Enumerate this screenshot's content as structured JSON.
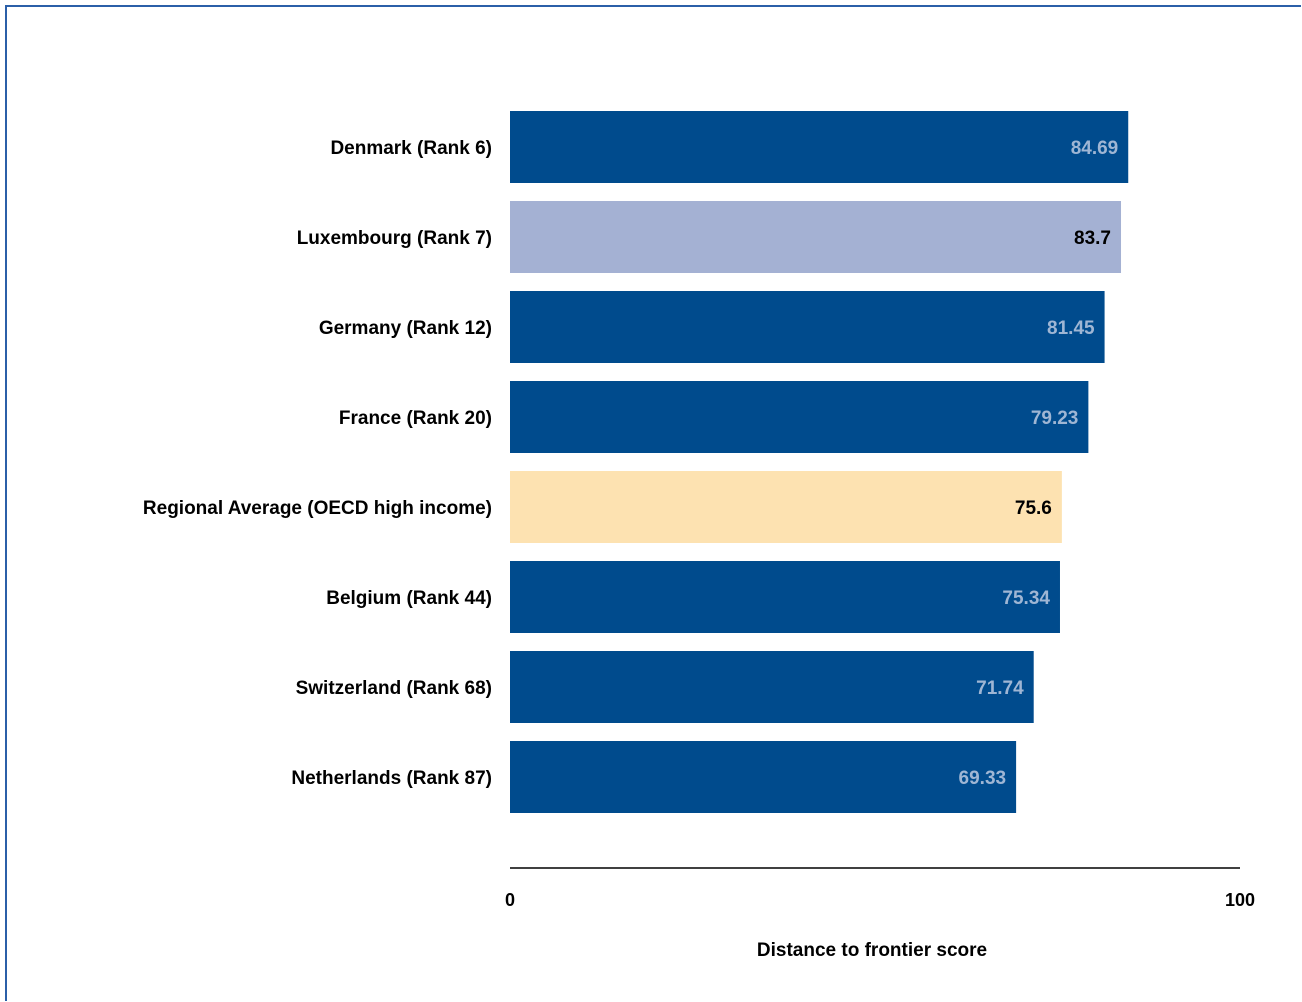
{
  "chart_data": {
    "type": "bar",
    "orientation": "horizontal",
    "title": "",
    "xlabel": "Distance to frontier score",
    "ylabel": "",
    "xlim": [
      0,
      100
    ],
    "x_ticks": [
      "0",
      "100"
    ],
    "grid": false,
    "legend": "none",
    "categories": [
      "Denmark (Rank 6)",
      "Luxembourg (Rank 7)",
      "Germany (Rank 12)",
      "France (Rank 20)",
      "Regional Average (OECD high income)",
      "Belgium (Rank 44)",
      "Switzerland (Rank 68)",
      "Netherlands (Rank 87)"
    ],
    "values": [
      84.69,
      83.7,
      81.45,
      79.23,
      75.6,
      75.34,
      71.74,
      69.33
    ],
    "value_labels": [
      "84.69",
      "83.7",
      "81.45",
      "79.23",
      "75.6",
      "75.34",
      "71.74",
      "69.33"
    ],
    "bar_colors": [
      "#004b8d",
      "#a4b1d3",
      "#004b8d",
      "#004b8d",
      "#fde2b1",
      "#004b8d",
      "#004b8d",
      "#004b8d"
    ],
    "value_label_colors": [
      "#9fb6d4",
      "#000000",
      "#9fb6d4",
      "#9fb6d4",
      "#000000",
      "#9fb6d4",
      "#9fb6d4",
      "#9fb6d4"
    ]
  }
}
